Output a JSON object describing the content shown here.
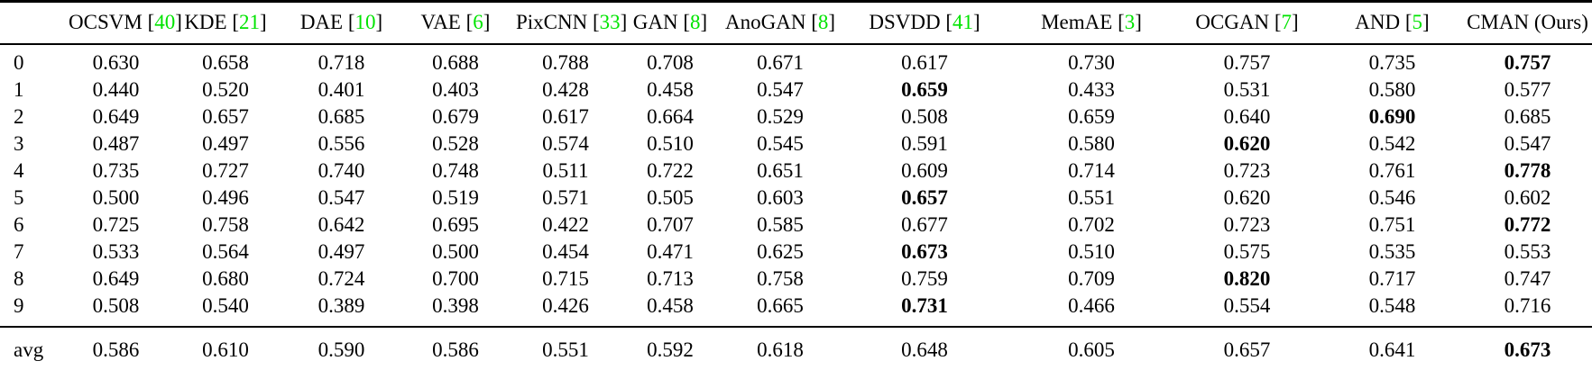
{
  "colors": {
    "citation_green": "#00e400",
    "text": "#000000",
    "background": "#ffffff",
    "rule": "#000000"
  },
  "table": {
    "corner_label": "",
    "columns": [
      {
        "label": "OCSVM",
        "cite": "40",
        "bold": false
      },
      {
        "label": "KDE",
        "cite": "21",
        "bold": false
      },
      {
        "label": "DAE",
        "cite": "10",
        "bold": false
      },
      {
        "label": "VAE",
        "cite": "6",
        "bold": false
      },
      {
        "label": "PixCNN",
        "cite": "33",
        "bold": false
      },
      {
        "label": "GAN",
        "cite": "8",
        "bold": false
      },
      {
        "label": "AnoGAN",
        "cite": "8",
        "bold": false
      },
      {
        "label": "DSVDD",
        "cite": "41",
        "bold": false
      },
      {
        "label": "MemAE",
        "cite": "3",
        "bold": false
      },
      {
        "label": "OCGAN",
        "cite": "7",
        "bold": false
      },
      {
        "label": "AND",
        "cite": "5",
        "bold": false
      },
      {
        "label": "CMAN (Ours)",
        "cite": "",
        "bold": true
      }
    ],
    "rows": [
      {
        "label": "0",
        "values": [
          "0.630",
          "0.658",
          "0.718",
          "0.688",
          "0.788",
          "0.708",
          "0.671",
          "0.617",
          "0.730",
          "0.757",
          "0.735",
          "0.757"
        ],
        "bold_index": 11
      },
      {
        "label": "1",
        "values": [
          "0.440",
          "0.520",
          "0.401",
          "0.403",
          "0.428",
          "0.458",
          "0.547",
          "0.659",
          "0.433",
          "0.531",
          "0.580",
          "0.577"
        ],
        "bold_index": 7
      },
      {
        "label": "2",
        "values": [
          "0.649",
          "0.657",
          "0.685",
          "0.679",
          "0.617",
          "0.664",
          "0.529",
          "0.508",
          "0.659",
          "0.640",
          "0.690",
          "0.685"
        ],
        "bold_index": 10
      },
      {
        "label": "3",
        "values": [
          "0.487",
          "0.497",
          "0.556",
          "0.528",
          "0.574",
          "0.510",
          "0.545",
          "0.591",
          "0.580",
          "0.620",
          "0.542",
          "0.547"
        ],
        "bold_index": 9
      },
      {
        "label": "4",
        "values": [
          "0.735",
          "0.727",
          "0.740",
          "0.748",
          "0.511",
          "0.722",
          "0.651",
          "0.609",
          "0.714",
          "0.723",
          "0.761",
          "0.778"
        ],
        "bold_index": 11
      },
      {
        "label": "5",
        "values": [
          "0.500",
          "0.496",
          "0.547",
          "0.519",
          "0.571",
          "0.505",
          "0.603",
          "0.657",
          "0.551",
          "0.620",
          "0.546",
          "0.602"
        ],
        "bold_index": 7
      },
      {
        "label": "6",
        "values": [
          "0.725",
          "0.758",
          "0.642",
          "0.695",
          "0.422",
          "0.707",
          "0.585",
          "0.677",
          "0.702",
          "0.723",
          "0.751",
          "0.772"
        ],
        "bold_index": 11
      },
      {
        "label": "7",
        "values": [
          "0.533",
          "0.564",
          "0.497",
          "0.500",
          "0.454",
          "0.471",
          "0.625",
          "0.673",
          "0.510",
          "0.575",
          "0.535",
          "0.553"
        ],
        "bold_index": 7
      },
      {
        "label": "8",
        "values": [
          "0.649",
          "0.680",
          "0.724",
          "0.700",
          "0.715",
          "0.713",
          "0.758",
          "0.759",
          "0.709",
          "0.820",
          "0.717",
          "0.747"
        ],
        "bold_index": 9
      },
      {
        "label": "9",
        "values": [
          "0.508",
          "0.540",
          "0.389",
          "0.398",
          "0.426",
          "0.458",
          "0.665",
          "0.731",
          "0.466",
          "0.554",
          "0.548",
          "0.716"
        ],
        "bold_index": 7
      }
    ],
    "summary_row": {
      "label": "avg",
      "values": [
        "0.586",
        "0.610",
        "0.590",
        "0.586",
        "0.551",
        "0.592",
        "0.618",
        "0.648",
        "0.605",
        "0.657",
        "0.641",
        "0.673"
      ],
      "bold_index": 11
    }
  }
}
